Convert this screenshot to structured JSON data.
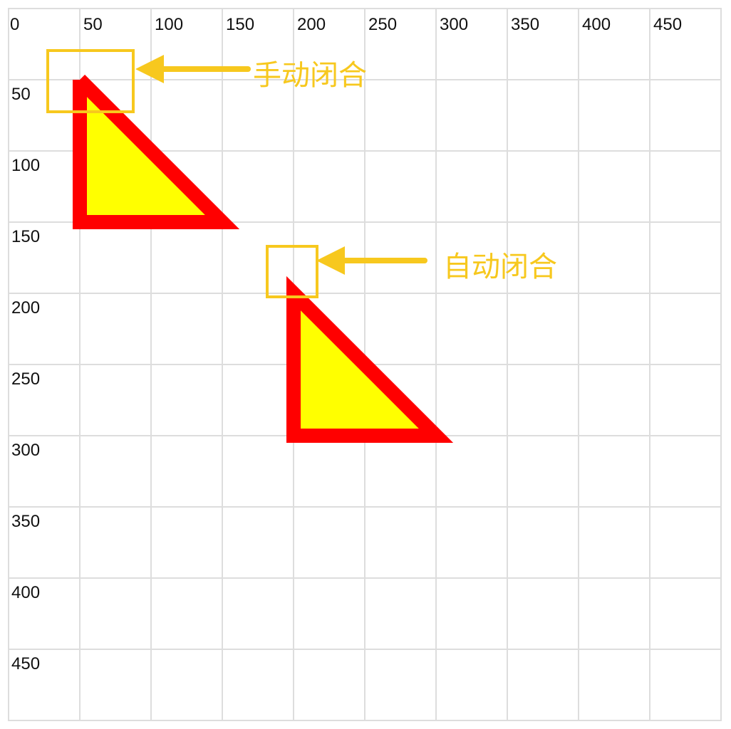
{
  "grid": {
    "x_labels": [
      0,
      50,
      100,
      150,
      200,
      250,
      300,
      350,
      400,
      450
    ],
    "y_labels": [
      50,
      100,
      150,
      200,
      250,
      300,
      350,
      400,
      450
    ]
  },
  "annotations": [
    {
      "label": "手动闭合"
    },
    {
      "label": "自动闭合"
    }
  ]
}
